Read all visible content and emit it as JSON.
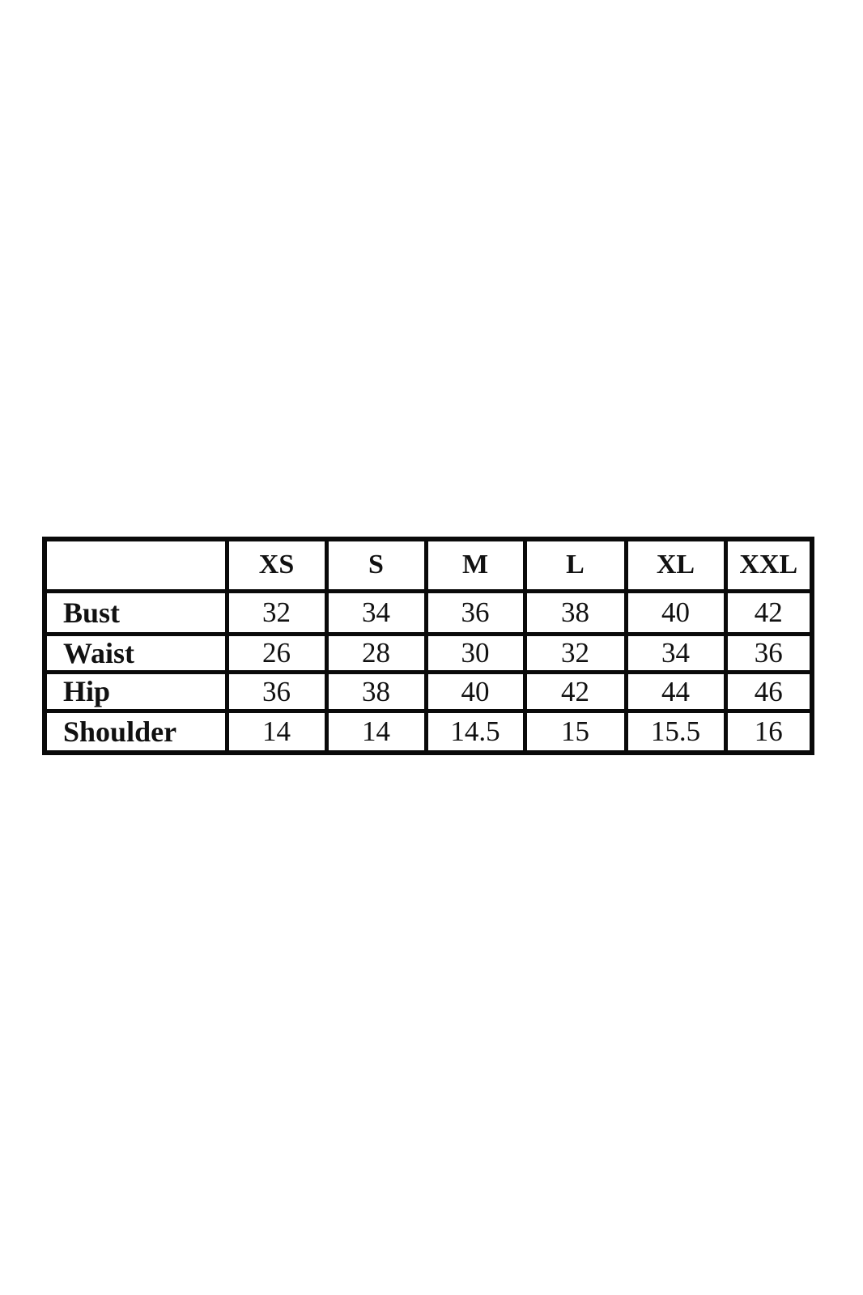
{
  "size_chart": {
    "columns": [
      "",
      "XS",
      "S",
      "M",
      "L",
      "XL",
      "XXL"
    ],
    "rows": [
      {
        "label": "Bust",
        "values": [
          "32",
          "34",
          "36",
          "38",
          "40",
          "42"
        ]
      },
      {
        "label": "Waist",
        "values": [
          "26",
          "28",
          "30",
          "32",
          "34",
          "36"
        ]
      },
      {
        "label": "Hip",
        "values": [
          "36",
          "38",
          "40",
          "42",
          "44",
          "46"
        ]
      },
      {
        "label": "Shoulder",
        "values": [
          "14",
          "14",
          "14.5",
          "15",
          "15.5",
          "16"
        ]
      }
    ]
  }
}
